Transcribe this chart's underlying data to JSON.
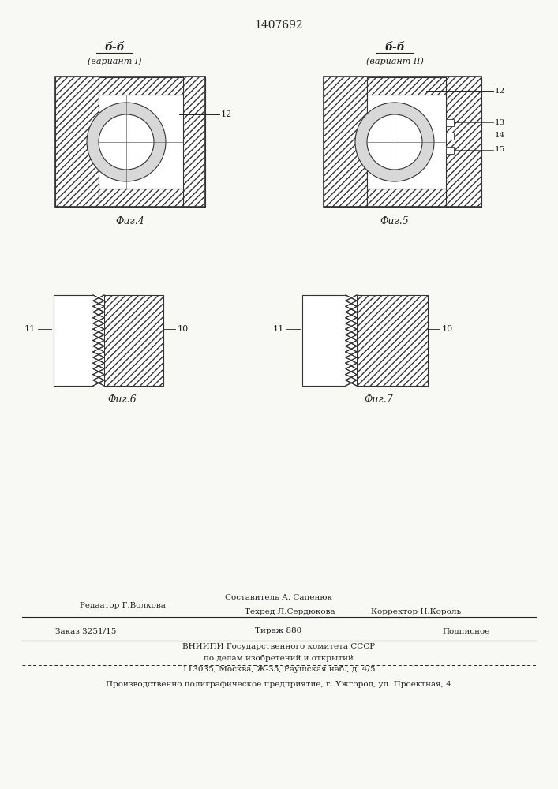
{
  "patent_number": "1407692",
  "background_color": "#f8f8f5",
  "fig4_label": "Фиг.4",
  "fig5_label": "Фиг.5",
  "fig6_label": "Фиг.6",
  "fig7_label": "Фиг.7",
  "section_label1": "б-б",
  "section_label2": "б-б",
  "variant1": "(вариант I)",
  "variant2": "(вариант II)",
  "ref12_1": "12",
  "ref12_2": "12",
  "ref13": "13",
  "ref14": "14",
  "ref15": "15",
  "ref10_1": "10",
  "ref10_2": "10",
  "ref11_1": "11",
  "ref11_2": "11",
  "footer_redaktor": "Редаатор Г.Волкова",
  "footer_sostavitel": "Составитель А. Сапенюк",
  "footer_tehred": "Техред Л.Сердюкова",
  "footer_korrektor": "Корректор Н.Король",
  "footer_zakaz": "Заказ 3251/15",
  "footer_tirazh": "Тираж 880",
  "footer_podpisnoe": "Подписное",
  "footer_vniip1": "ВНИИПИ Государственного комитета СССР",
  "footer_vniip2": "по делам изобретений и открытий",
  "footer_vniip3": "113035, Москва, Ж-35, Раушская наб., д. 4/5",
  "footer_proizv": "Производственно полиграфическое предприятие, г. Ужгород, ул. Проектная, 4",
  "line_color": "#222222"
}
